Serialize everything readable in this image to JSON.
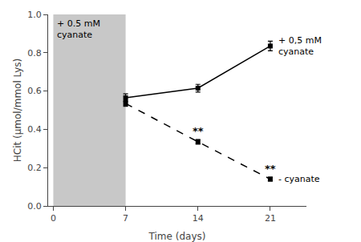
{
  "chart_data": {
    "type": "line",
    "x": [
      7,
      14,
      21
    ],
    "series": [
      {
        "name": "+ 0,5 mM\ncyanate",
        "color": "#000000",
        "line_style": "solid",
        "marker": "square",
        "values": [
          0.565,
          0.615,
          0.835
        ],
        "errors": [
          0.02,
          0.02,
          0.025
        ]
      },
      {
        "name": "- cyanate",
        "color": "#000000",
        "line_style": "dashed",
        "marker": "square",
        "values": [
          0.535,
          0.335,
          0.14
        ],
        "errors": [
          0.015,
          0.012,
          0.01
        ],
        "annotations": [
          null,
          "**",
          "**"
        ]
      }
    ],
    "shaded_region": {
      "x": [
        0,
        7
      ],
      "label": "+ 0.5 mM\ncyanate",
      "color": "#c8c8c8"
    },
    "xlabel": "Time (days)",
    "ylabel": "HCit (μmol/mmol Lys)",
    "xlim": [
      -0.5,
      24.5
    ],
    "xticks": [
      0,
      7,
      14,
      21
    ],
    "ylim": [
      0.0,
      1.0
    ],
    "yticks": [
      {
        "value": 0,
        "label": "0.0"
      },
      0.2,
      0.4,
      0.6,
      0.8,
      {
        "value": 1,
        "label": "1.0"
      }
    ],
    "grid": false,
    "legend": false
  }
}
